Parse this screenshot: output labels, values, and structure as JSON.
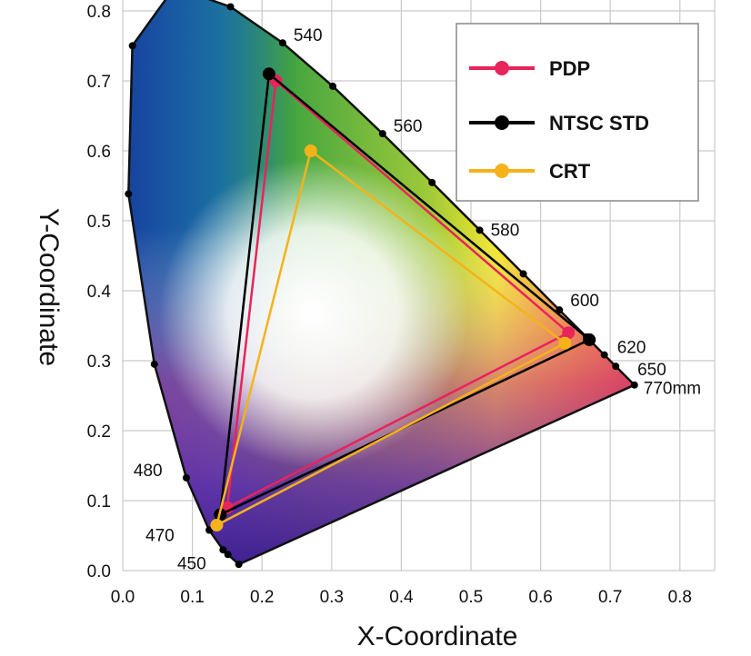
{
  "chart_data": {
    "type": "line",
    "xlabel": "X-Coordinate",
    "ylabel": "Y-Coordinate",
    "xlim": [
      0.0,
      0.85
    ],
    "ylim": [
      0.0,
      0.85
    ],
    "xticks": [
      "0.0",
      "0.1",
      "0.2",
      "0.3",
      "0.4",
      "0.5",
      "0.6",
      "0.7",
      "0.8"
    ],
    "yticks": [
      "0.0",
      "0.1",
      "0.2",
      "0.3",
      "0.4",
      "0.5",
      "0.6",
      "0.7",
      "0.8"
    ],
    "grid": true,
    "legend_position": "top-right",
    "spectral_locus": {
      "points": [
        {
          "x": 0.1666,
          "y": 0.0089
        },
        {
          "x": 0.151,
          "y": 0.023
        },
        {
          "x": 0.144,
          "y": 0.0297
        },
        {
          "x": 0.1241,
          "y": 0.0578
        },
        {
          "x": 0.0913,
          "y": 0.1327
        },
        {
          "x": 0.0454,
          "y": 0.295
        },
        {
          "x": 0.0082,
          "y": 0.5384
        },
        {
          "x": 0.0139,
          "y": 0.7502
        },
        {
          "x": 0.0743,
          "y": 0.8338
        },
        {
          "x": 0.1547,
          "y": 0.8059
        },
        {
          "x": 0.2296,
          "y": 0.7543
        },
        {
          "x": 0.3016,
          "y": 0.6923
        },
        {
          "x": 0.3731,
          "y": 0.6245
        },
        {
          "x": 0.4441,
          "y": 0.5547
        },
        {
          "x": 0.5125,
          "y": 0.4866
        },
        {
          "x": 0.5752,
          "y": 0.4242
        },
        {
          "x": 0.627,
          "y": 0.3725
        },
        {
          "x": 0.6658,
          "y": 0.334
        },
        {
          "x": 0.6915,
          "y": 0.3083
        },
        {
          "x": 0.7079,
          "y": 0.292
        },
        {
          "x": 0.7347,
          "y": 0.2653
        }
      ],
      "labels": [
        {
          "text": "450",
          "x": 0.1566,
          "y": 0.0177
        },
        {
          "text": "470",
          "x": 0.1241,
          "y": 0.0578
        },
        {
          "text": "480",
          "x": 0.0913,
          "y": 0.1327
        },
        {
          "text": "540",
          "x": 0.2296,
          "y": 0.7543
        },
        {
          "text": "560",
          "x": 0.3731,
          "y": 0.6245
        },
        {
          "text": "580",
          "x": 0.5125,
          "y": 0.4866
        },
        {
          "text": "600",
          "x": 0.627,
          "y": 0.3725
        },
        {
          "text": "620",
          "x": 0.6915,
          "y": 0.3083
        },
        {
          "text": "650",
          "x": 0.726,
          "y": 0.274
        },
        {
          "text": "770mm",
          "x": 0.7347,
          "y": 0.2653
        }
      ]
    },
    "series": [
      {
        "name": "PDP",
        "color": "#e8245a",
        "points": [
          {
            "x": 0.22,
            "y": 0.7
          },
          {
            "x": 0.64,
            "y": 0.34
          },
          {
            "x": 0.15,
            "y": 0.09
          }
        ]
      },
      {
        "name": "NTSC STD",
        "color": "#000000",
        "points": [
          {
            "x": 0.21,
            "y": 0.71
          },
          {
            "x": 0.67,
            "y": 0.33
          },
          {
            "x": 0.14,
            "y": 0.08
          }
        ]
      },
      {
        "name": "CRT",
        "color": "#f5b21b",
        "points": [
          {
            "x": 0.27,
            "y": 0.6
          },
          {
            "x": 0.635,
            "y": 0.325
          },
          {
            "x": 0.135,
            "y": 0.065
          }
        ]
      }
    ]
  }
}
